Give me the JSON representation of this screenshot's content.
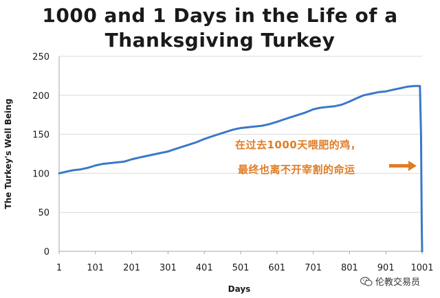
{
  "title_line1": "1000 and 1 Days in the Life of a",
  "title_line2": "Thanksgiving Turkey",
  "annotation_line1": "在过去1000天喂肥的鸡，",
  "annotation_line2": "最终也离不开宰割的命运",
  "watermark_text": "伦教交易员",
  "colors": {
    "line": "#3a78c8",
    "annotation": "#e07c24",
    "grid": "#d9d9d9",
    "axis": "#a6a6a6"
  },
  "chart_data": {
    "type": "line",
    "title": "1000 and 1 Days in the Life of a Thanksgiving Turkey",
    "xlabel": "Days",
    "ylabel": "The Turkey's Well Being",
    "xlim": [
      1,
      1001
    ],
    "ylim": [
      0,
      250
    ],
    "xticks": [
      1,
      101,
      201,
      301,
      401,
      501,
      601,
      701,
      801,
      901,
      1001
    ],
    "yticks": [
      0,
      50,
      100,
      150,
      200,
      250
    ],
    "grid": "horizontal",
    "legend": "none",
    "series": [
      {
        "x": [
          1,
          20,
          40,
          60,
          80,
          101,
          120,
          140,
          160,
          180,
          201,
          220,
          240,
          260,
          280,
          301,
          320,
          340,
          360,
          380,
          401,
          420,
          440,
          460,
          480,
          501,
          520,
          540,
          560,
          580,
          601,
          620,
          640,
          660,
          680,
          701,
          720,
          740,
          760,
          780,
          801,
          820,
          840,
          860,
          880,
          901,
          920,
          940,
          960,
          980,
          995,
          998,
          1000,
          1001
        ],
        "y": [
          100,
          102,
          104,
          105,
          107,
          110,
          112,
          113,
          114,
          115,
          118,
          120,
          122,
          124,
          126,
          128,
          131,
          134,
          137,
          140,
          144,
          147,
          150,
          153,
          156,
          158,
          159,
          160,
          161,
          163,
          166,
          169,
          172,
          175,
          178,
          182,
          184,
          185,
          186,
          188,
          192,
          196,
          200,
          202,
          204,
          205,
          207,
          209,
          211,
          212,
          212,
          150,
          30,
          0
        ]
      }
    ]
  }
}
